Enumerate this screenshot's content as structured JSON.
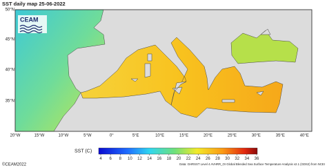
{
  "header": {
    "title": "SST daily map 25-06-2022",
    "logo": "CEAM"
  },
  "map": {
    "lat_labels": [
      "50°N",
      "45°N",
      "40°N",
      "35°N"
    ],
    "lon_labels": [
      "20°W",
      "15°W",
      "10°W",
      "5°W",
      "0°",
      "5°E",
      "10°E",
      "15°E",
      "20°E",
      "25°E",
      "30°E",
      "35°E",
      "40°E"
    ]
  },
  "colorbar": {
    "label": "SST (C)",
    "ticks": [
      4,
      6,
      8,
      10,
      12,
      14,
      16,
      18,
      20,
      22,
      24,
      26,
      28,
      30,
      32,
      34,
      36
    ]
  },
  "footer": {
    "copyright": "©CEAM2022",
    "source": "Data: GHRSST Level 4 AVHRR_OI Global Blended Sea Surface Temperature Analysis v2.1 (GDS2) from NCEI"
  }
}
